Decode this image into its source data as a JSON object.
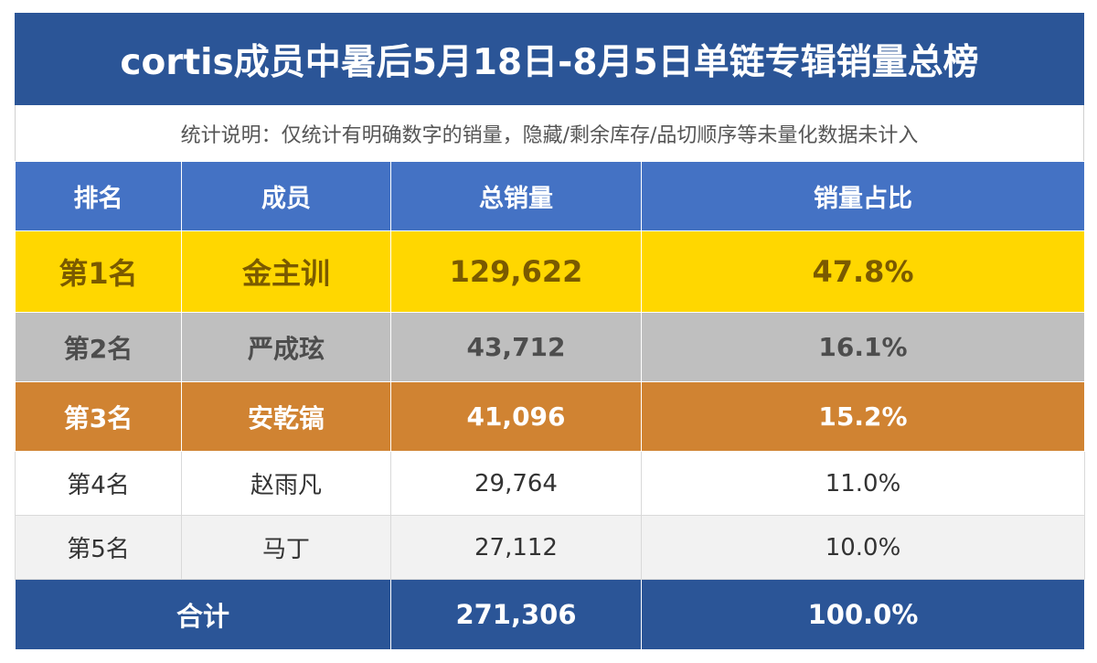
{
  "title": "cortis成员中暑后5月18日-8月5日单链专辑销量总榜",
  "note": "统计说明：仅统计有明确数字的销量，隐藏/剩余库存/品切顺序等未量化数据未计入",
  "table": {
    "headers": [
      "排名",
      "成员",
      "总销量",
      "销量占比"
    ],
    "rows": [
      {
        "rank": "第1名",
        "member": "金主训",
        "sales": "129,622",
        "share": "47.8%"
      },
      {
        "rank": "第2名",
        "member": "严成玹",
        "sales": "43,712",
        "share": "16.1%"
      },
      {
        "rank": "第3名",
        "member": "安乾镐",
        "sales": "41,096",
        "share": "15.2%"
      },
      {
        "rank": "第4名",
        "member": "赵雨凡",
        "sales": "29,764",
        "share": "11.0%"
      },
      {
        "rank": "第5名",
        "member": "马丁",
        "sales": "27,112",
        "share": "10.0%"
      }
    ],
    "total": {
      "label": "合计",
      "sales": "271,306",
      "share": "100.0%"
    }
  },
  "colors": {
    "title_bg": "#2b5597",
    "header_bg": "#4472c4",
    "gold": "#ffd700",
    "silver": "#bfbfbf",
    "bronze": "#d08332"
  }
}
